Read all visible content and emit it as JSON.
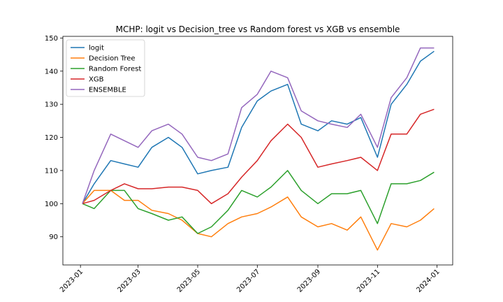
{
  "chart_data": {
    "type": "line",
    "title": "MCHP: logit vs Decision_tree vs Random forest vs XGB vs ensemble",
    "xlabel": "",
    "ylabel": "",
    "x_ticks": [
      "2023-01",
      "2023-03",
      "2023-05",
      "2023-07",
      "2023-09",
      "2023-11",
      "2024-01"
    ],
    "y_ticks": [
      90,
      100,
      110,
      120,
      130,
      140,
      150
    ],
    "xlim": [
      "2022-12-14",
      "2024-01-17"
    ],
    "ylim": [
      81.5,
      150.5
    ],
    "grid": false,
    "legend_position": "top-left",
    "x": [
      "2023-01-03",
      "2023-01-15",
      "2023-02-01",
      "2023-02-15",
      "2023-03-01",
      "2023-03-15",
      "2023-04-01",
      "2023-04-15",
      "2023-05-01",
      "2023-05-15",
      "2023-06-01",
      "2023-06-15",
      "2023-07-01",
      "2023-07-15",
      "2023-08-01",
      "2023-08-15",
      "2023-09-01",
      "2023-09-15",
      "2023-10-01",
      "2023-10-15",
      "2023-11-01",
      "2023-11-15",
      "2023-12-01",
      "2023-12-15",
      "2023-12-29"
    ],
    "series": [
      {
        "name": "logit",
        "color": "#1f77b4",
        "values": [
          100,
          106,
          113,
          112,
          111,
          117,
          120,
          117,
          109,
          110,
          111,
          123,
          131,
          134,
          136,
          124,
          122,
          125,
          124,
          126,
          114,
          130,
          136,
          143,
          146
        ]
      },
      {
        "name": "Decision Tree",
        "color": "#ff7f0e",
        "values": [
          100,
          104,
          104,
          101,
          101,
          98,
          97,
          95,
          91,
          90,
          94,
          96,
          97,
          99,
          102,
          96,
          93,
          94,
          92,
          96,
          86,
          94,
          93,
          95,
          98.5
        ]
      },
      {
        "name": "Random Forest",
        "color": "#2ca02c",
        "values": [
          100,
          98.5,
          104,
          104,
          98.5,
          97,
          95,
          96,
          91,
          93,
          98,
          104,
          102,
          105,
          110,
          104,
          100,
          103,
          103,
          104,
          94,
          106,
          106,
          107,
          109.5
        ]
      },
      {
        "name": "XGB",
        "color": "#d62728",
        "values": [
          100,
          101,
          104,
          106,
          104.5,
          104.5,
          105,
          105,
          104,
          100,
          103,
          108,
          113,
          119,
          124,
          120,
          111,
          112,
          113,
          114,
          110,
          121,
          121,
          127,
          128.5
        ]
      },
      {
        "name": "ENSEMBLE",
        "color": "#9467bd",
        "values": [
          100,
          110,
          121,
          119,
          117,
          122,
          124,
          121,
          114,
          113,
          115,
          129,
          133,
          140,
          138,
          128,
          125,
          124,
          123,
          127,
          117,
          132,
          138,
          147,
          147
        ]
      }
    ]
  }
}
